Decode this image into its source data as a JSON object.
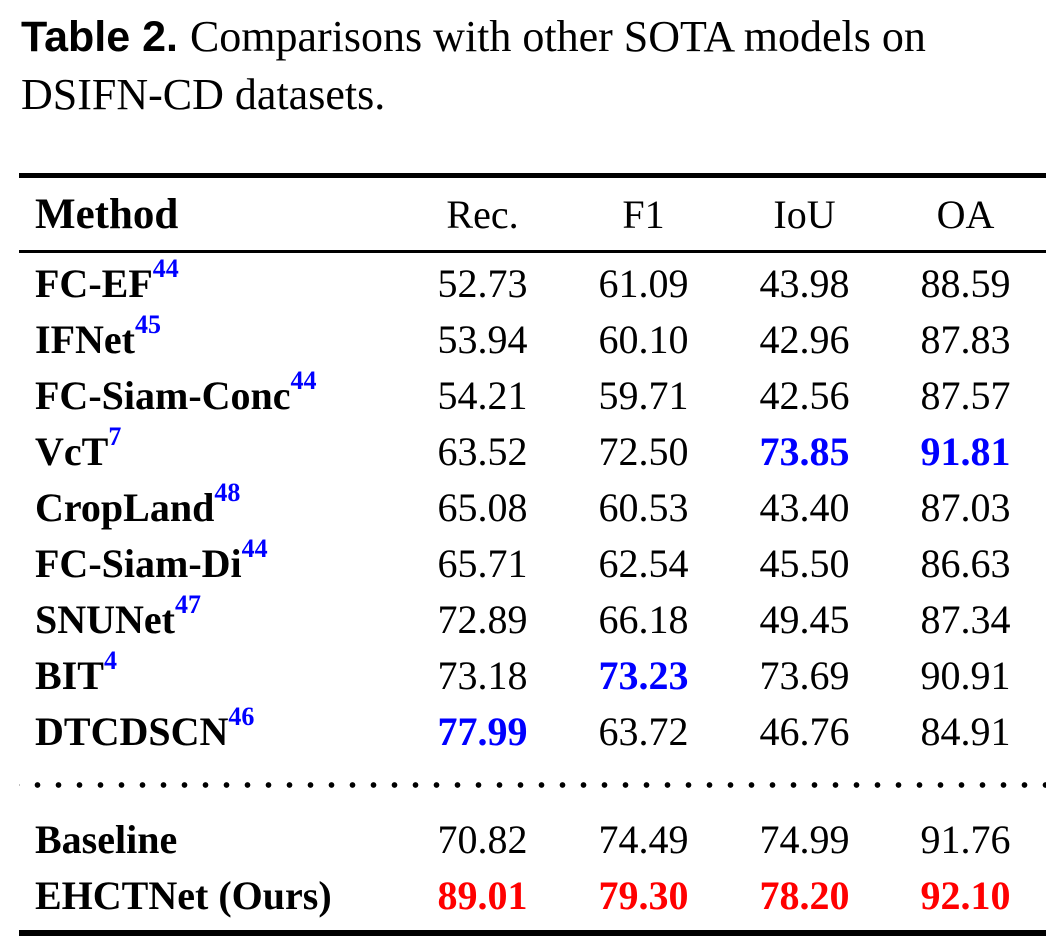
{
  "title": {
    "label": "Table 2.",
    "text": "Comparisons with other SOTA models on DSIFN-CD datasets."
  },
  "colors": {
    "text_black": "#000000",
    "best_value_blue": "#0000ff",
    "ours_value_red": "#ff0000",
    "reference_blue": "#0000ff",
    "background": "#ffffff"
  },
  "styles": {
    "reference_superscript": {
      "color": "#0000ff"
    }
  },
  "table": {
    "headers": [
      "Method",
      "Rec.",
      "F1",
      "IoU",
      "OA"
    ],
    "rows": [
      {
        "method": "FC-EF",
        "ref": "44",
        "values": [
          "52.73",
          "61.09",
          "43.98",
          "88.59"
        ],
        "value_styles": [
          {
            "color": "#000000",
            "fontWeight": "400"
          },
          {
            "color": "#000000",
            "fontWeight": "400"
          },
          {
            "color": "#000000",
            "fontWeight": "400"
          },
          {
            "color": "#000000",
            "fontWeight": "400"
          }
        ]
      },
      {
        "method": "IFNet",
        "ref": "45",
        "values": [
          "53.94",
          "60.10",
          "42.96",
          "87.83"
        ],
        "value_styles": [
          {
            "color": "#000000",
            "fontWeight": "400"
          },
          {
            "color": "#000000",
            "fontWeight": "400"
          },
          {
            "color": "#000000",
            "fontWeight": "400"
          },
          {
            "color": "#000000",
            "fontWeight": "400"
          }
        ]
      },
      {
        "method": "FC-Siam-Conc",
        "ref": "44",
        "values": [
          "54.21",
          "59.71",
          "42.56",
          "87.57"
        ],
        "value_styles": [
          {
            "color": "#000000",
            "fontWeight": "400"
          },
          {
            "color": "#000000",
            "fontWeight": "400"
          },
          {
            "color": "#000000",
            "fontWeight": "400"
          },
          {
            "color": "#000000",
            "fontWeight": "400"
          }
        ]
      },
      {
        "method": "VcT",
        "ref": "7",
        "values": [
          "63.52",
          "72.50",
          "73.85",
          "91.81"
        ],
        "value_styles": [
          {
            "color": "#000000",
            "fontWeight": "400"
          },
          {
            "color": "#000000",
            "fontWeight": "400"
          },
          {
            "color": "#0000ff",
            "fontWeight": "700"
          },
          {
            "color": "#0000ff",
            "fontWeight": "700"
          }
        ]
      },
      {
        "method": "CropLand",
        "ref": "48",
        "values": [
          "65.08",
          "60.53",
          "43.40",
          "87.03"
        ],
        "value_styles": [
          {
            "color": "#000000",
            "fontWeight": "400"
          },
          {
            "color": "#000000",
            "fontWeight": "400"
          },
          {
            "color": "#000000",
            "fontWeight": "400"
          },
          {
            "color": "#000000",
            "fontWeight": "400"
          }
        ]
      },
      {
        "method": "FC-Siam-Di",
        "ref": "44",
        "values": [
          "65.71",
          "62.54",
          "45.50",
          "86.63"
        ],
        "value_styles": [
          {
            "color": "#000000",
            "fontWeight": "400"
          },
          {
            "color": "#000000",
            "fontWeight": "400"
          },
          {
            "color": "#000000",
            "fontWeight": "400"
          },
          {
            "color": "#000000",
            "fontWeight": "400"
          }
        ]
      },
      {
        "method": "SNUNet",
        "ref": "47",
        "values": [
          "72.89",
          "66.18",
          "49.45",
          "87.34"
        ],
        "value_styles": [
          {
            "color": "#000000",
            "fontWeight": "400"
          },
          {
            "color": "#000000",
            "fontWeight": "400"
          },
          {
            "color": "#000000",
            "fontWeight": "400"
          },
          {
            "color": "#000000",
            "fontWeight": "400"
          }
        ]
      },
      {
        "method": "BIT",
        "ref": "4",
        "values": [
          "73.18",
          "73.23",
          "73.69",
          "90.91"
        ],
        "value_styles": [
          {
            "color": "#000000",
            "fontWeight": "400"
          },
          {
            "color": "#0000ff",
            "fontWeight": "700"
          },
          {
            "color": "#000000",
            "fontWeight": "400"
          },
          {
            "color": "#000000",
            "fontWeight": "400"
          }
        ]
      },
      {
        "method": "DTCDSCN",
        "ref": "46",
        "values": [
          "77.99",
          "63.72",
          "46.76",
          "84.91"
        ],
        "value_styles": [
          {
            "color": "#0000ff",
            "fontWeight": "700"
          },
          {
            "color": "#000000",
            "fontWeight": "400"
          },
          {
            "color": "#000000",
            "fontWeight": "400"
          },
          {
            "color": "#000000",
            "fontWeight": "400"
          }
        ]
      }
    ],
    "footer_rows": [
      {
        "method": "Baseline",
        "ref": "",
        "values": [
          "70.82",
          "74.49",
          "74.99",
          "91.76"
        ],
        "value_styles": [
          {
            "color": "#000000",
            "fontWeight": "400"
          },
          {
            "color": "#000000",
            "fontWeight": "400"
          },
          {
            "color": "#000000",
            "fontWeight": "400"
          },
          {
            "color": "#000000",
            "fontWeight": "400"
          }
        ]
      },
      {
        "method": "EHCTNet (Ours)",
        "ref": "",
        "values": [
          "89.01",
          "79.30",
          "78.20",
          "92.10"
        ],
        "value_styles": [
          {
            "color": "#ff0000",
            "fontWeight": "700"
          },
          {
            "color": "#ff0000",
            "fontWeight": "700"
          },
          {
            "color": "#ff0000",
            "fontWeight": "700"
          },
          {
            "color": "#ff0000",
            "fontWeight": "700"
          }
        ]
      }
    ]
  }
}
